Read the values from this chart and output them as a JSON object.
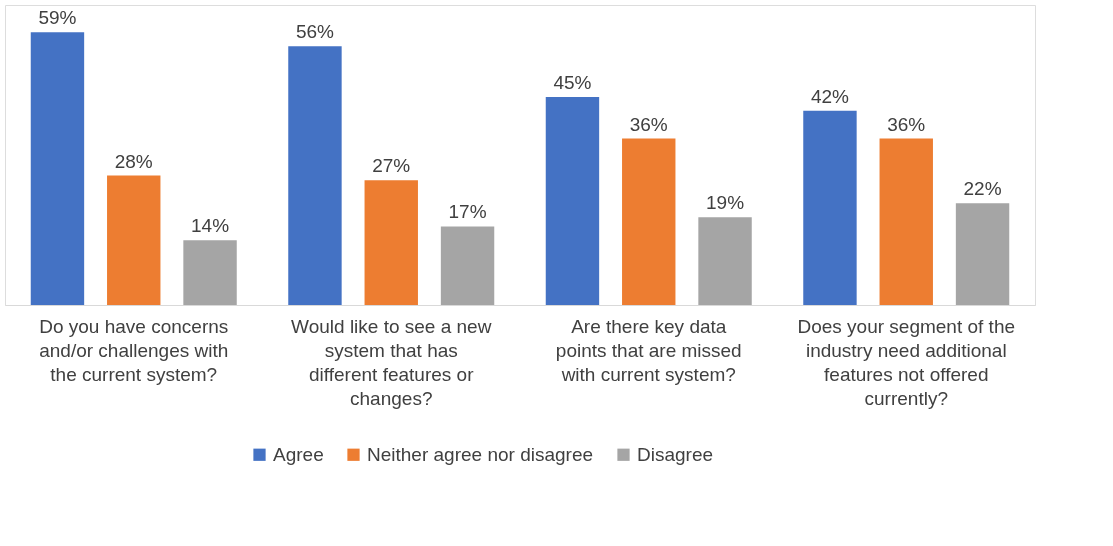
{
  "chart_data": {
    "type": "bar",
    "categories": [
      "Do you have concerns and/or challenges with the current system?",
      "Would like to see a new system that has different features or changes?",
      "Are there key data points that are missed with current system?",
      "Does your segment of the industry need additional features not offered currently?"
    ],
    "series": [
      {
        "name": "Agree",
        "color": "#4472c4",
        "values": [
          59,
          56,
          45,
          42
        ],
        "value_labels": [
          "59%",
          "56%",
          "45%",
          "42%"
        ]
      },
      {
        "name": "Neither agree nor disagree",
        "color": "#ed7d31",
        "values": [
          28,
          27,
          36,
          36
        ],
        "value_labels": [
          "28%",
          "27%",
          "36%",
          "36%"
        ]
      },
      {
        "name": "Disagree",
        "color": "#a5a5a5",
        "values": [
          14,
          17,
          19,
          22
        ],
        "value_labels": [
          "14%",
          "17%",
          "19%",
          "22%"
        ]
      }
    ],
    "legend": "bottom"
  }
}
